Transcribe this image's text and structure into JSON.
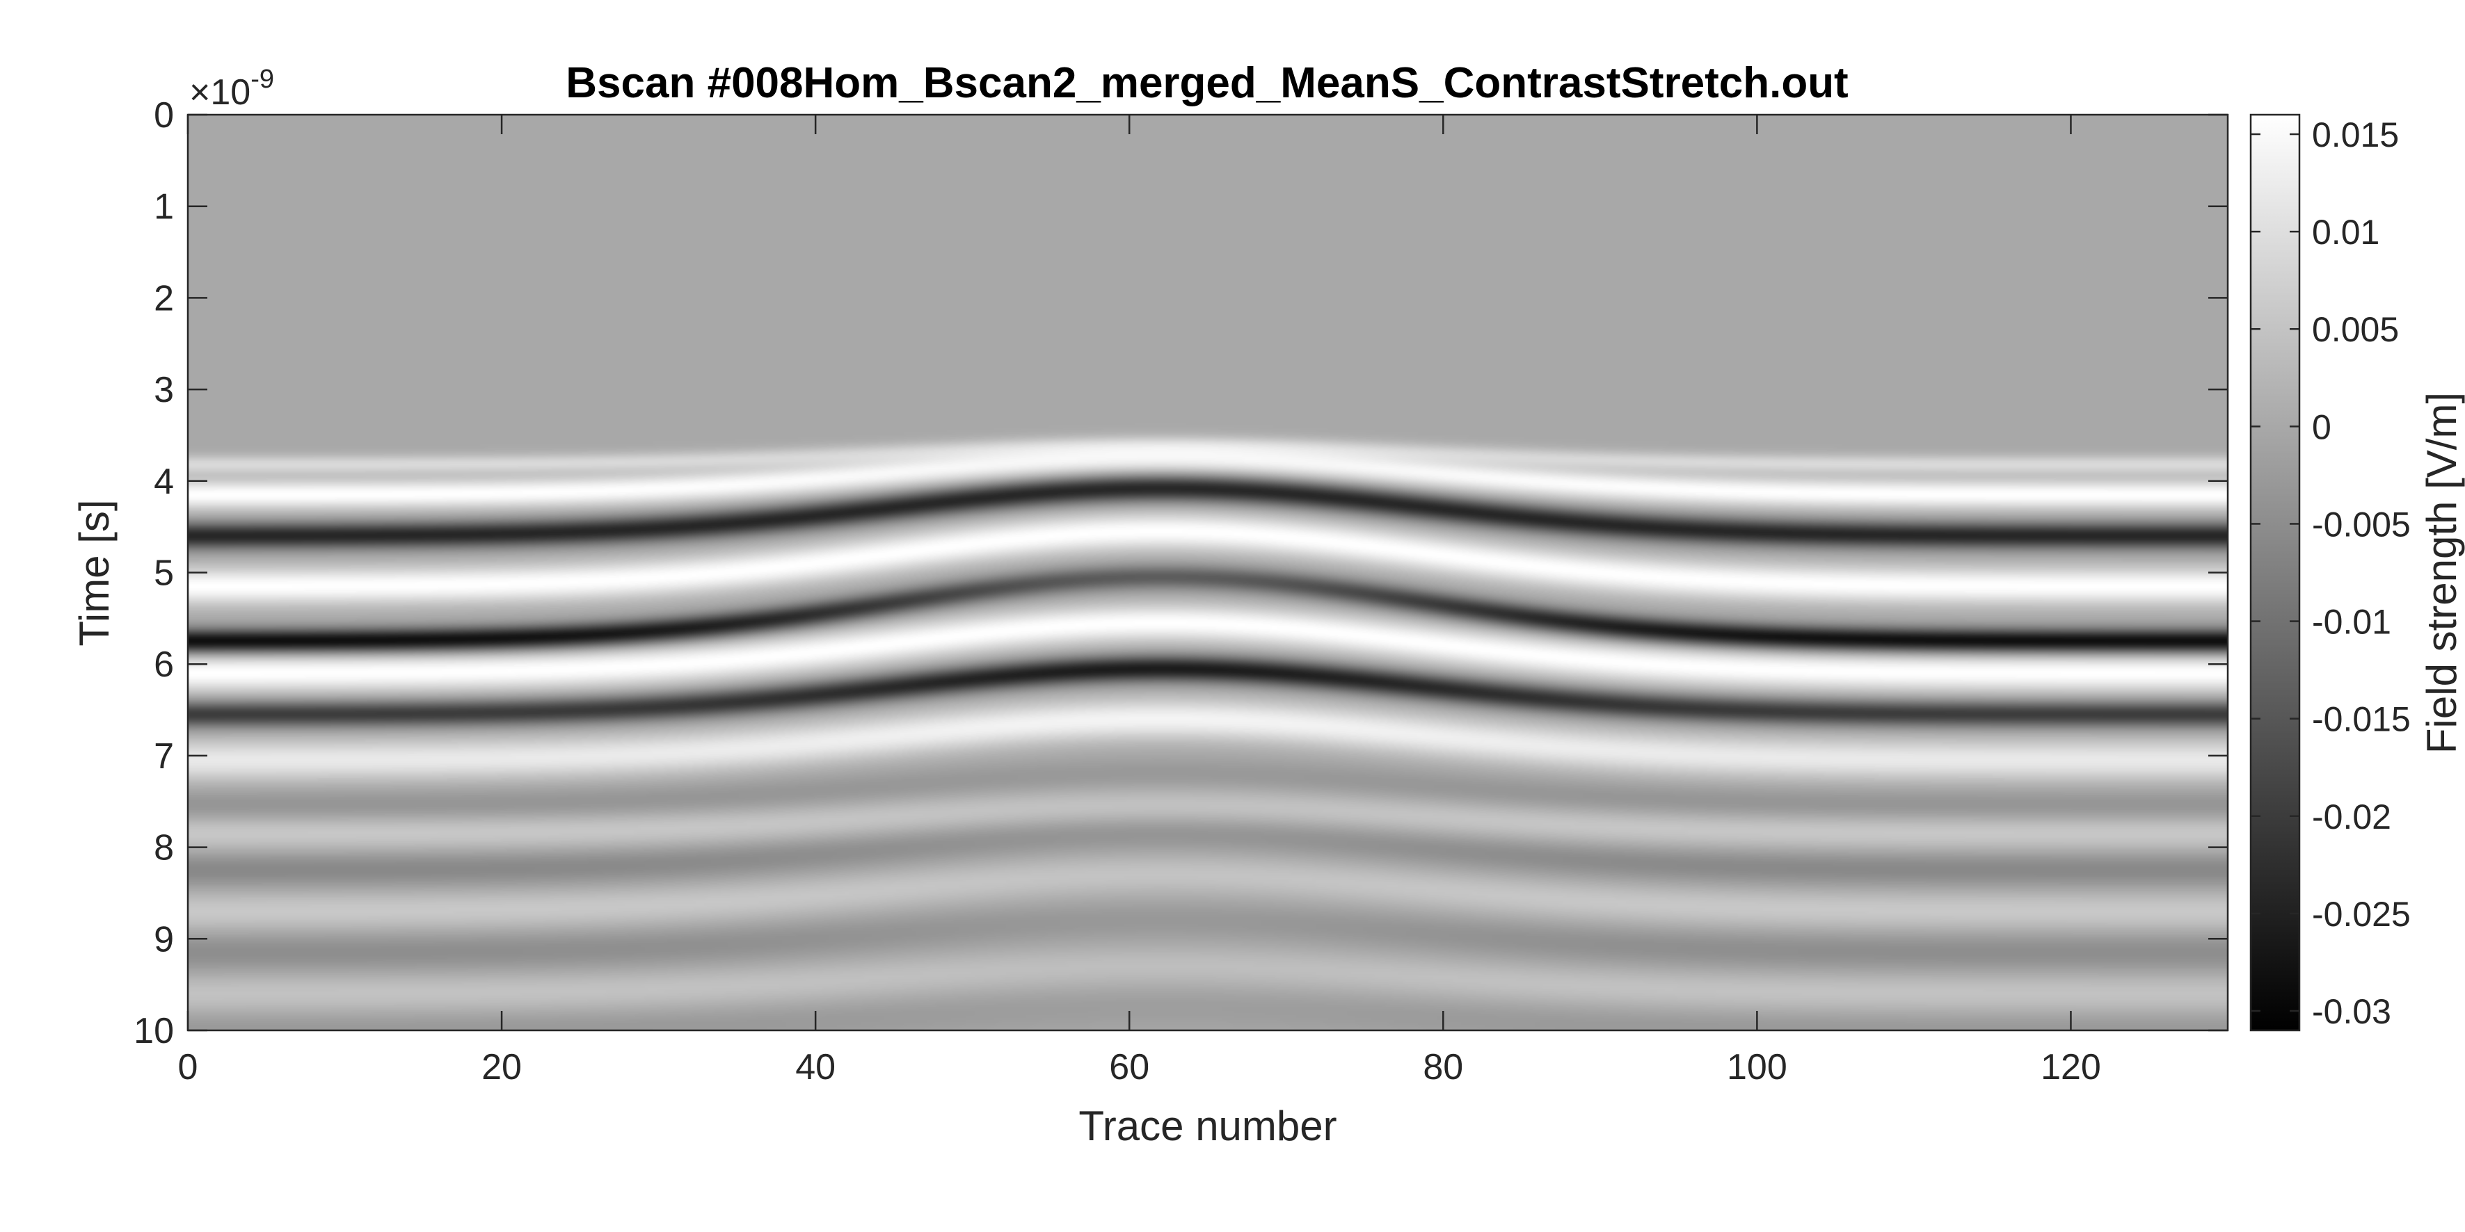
{
  "chart_data": {
    "type": "heatmap",
    "title": "Bscan #008Hom_Bscan2_merged_MeanS_ContrastStretch.out",
    "xlabel": "Trace number",
    "ylabel": "Time [s]",
    "y_exponent_base": "×10",
    "y_exponent_power": "-9",
    "xlim": [
      0,
      130
    ],
    "ylim": [
      0,
      10
    ],
    "y_reversed": true,
    "x_ticks": [
      0,
      20,
      40,
      60,
      80,
      100,
      120
    ],
    "x_tick_labels": [
      "0",
      "20",
      "40",
      "60",
      "80",
      "100",
      "120"
    ],
    "y_ticks": [
      0,
      1,
      2,
      3,
      4,
      5,
      6,
      7,
      8,
      9,
      10
    ],
    "y_tick_labels": [
      "0",
      "1",
      "2",
      "3",
      "4",
      "5",
      "6",
      "7",
      "8",
      "9",
      "10"
    ],
    "colormap": "gray",
    "background_value": 0.0,
    "colorbar": {
      "label": "Field strength [V/m]",
      "range": [
        -0.031,
        0.016
      ],
      "ticks": [
        0.015,
        0.01,
        0.005,
        0,
        -0.005,
        -0.01,
        -0.015,
        -0.02,
        -0.025,
        -0.03
      ],
      "tick_labels": [
        "0.015",
        "0.01",
        "0.005",
        "0",
        "-0.005",
        "-0.01",
        "-0.015",
        "-0.02",
        "-0.025",
        "-0.03"
      ]
    },
    "bands": [
      {
        "name": "faint early positive",
        "t_edge": 3.82,
        "t_center": 3.6,
        "amp_edge": 0.009,
        "amp_center": 0.006,
        "width": 0.1
      },
      {
        "name": "first white",
        "t_edge": 4.15,
        "t_center": 3.75,
        "amp_edge": 0.016,
        "amp_center": 0.014,
        "width": 0.16
      },
      {
        "name": "first dark",
        "t_edge": 4.6,
        "t_center": 4.08,
        "amp_edge": -0.024,
        "amp_center": -0.024,
        "width": 0.14
      },
      {
        "name": "second white",
        "t_edge": 5.15,
        "t_center": 4.55,
        "amp_edge": 0.016,
        "amp_center": 0.016,
        "width": 0.2
      },
      {
        "name": "second dark",
        "t_edge": 5.75,
        "t_center": 5.05,
        "amp_edge": -0.029,
        "amp_center": -0.014,
        "width": 0.13
      },
      {
        "name": "third white",
        "t_edge": 6.1,
        "t_center": 5.55,
        "amp_edge": 0.016,
        "amp_center": 0.016,
        "width": 0.2
      },
      {
        "name": "third dark",
        "t_edge": 6.55,
        "t_center": 6.05,
        "amp_edge": -0.02,
        "amp_center": -0.026,
        "width": 0.14
      },
      {
        "name": "fourth white",
        "t_edge": 7.05,
        "t_center": 6.6,
        "amp_edge": 0.012,
        "amp_center": 0.014,
        "width": 0.22
      },
      {
        "name": "late gray 1",
        "t_edge": 7.55,
        "t_center": 7.2,
        "amp_edge": -0.004,
        "amp_center": -0.003,
        "width": 0.18
      },
      {
        "name": "late white 1",
        "t_edge": 7.85,
        "t_center": 7.55,
        "amp_edge": 0.006,
        "amp_center": 0.005,
        "width": 0.2
      },
      {
        "name": "late gray 2",
        "t_edge": 8.25,
        "t_center": 7.85,
        "amp_edge": -0.006,
        "amp_center": -0.004,
        "width": 0.2
      },
      {
        "name": "late white 2",
        "t_edge": 8.7,
        "t_center": 8.3,
        "amp_edge": 0.006,
        "amp_center": 0.005,
        "width": 0.22
      },
      {
        "name": "late gray 3",
        "t_edge": 9.15,
        "t_center": 8.8,
        "amp_edge": -0.005,
        "amp_center": -0.003,
        "width": 0.22
      },
      {
        "name": "late white 3",
        "t_edge": 9.6,
        "t_center": 9.3,
        "amp_edge": 0.005,
        "amp_center": 0.004,
        "width": 0.22
      },
      {
        "name": "late gray 4",
        "t_edge": 10.0,
        "t_center": 9.75,
        "amp_edge": -0.003,
        "amp_center": -0.002,
        "width": 0.22
      }
    ],
    "hyperbola_apex_trace": 62,
    "hyperbola_half_width": 30,
    "grid": false
  }
}
